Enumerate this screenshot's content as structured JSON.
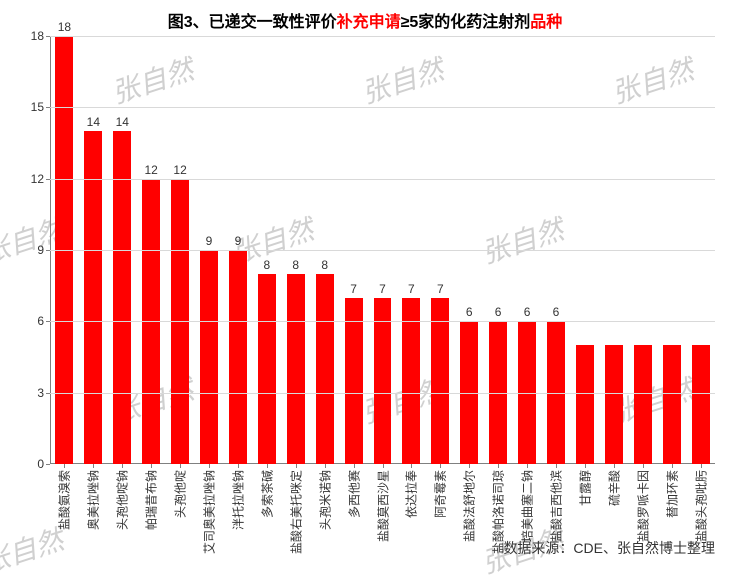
{
  "title": {
    "parts": [
      {
        "text": "图3、已递交一致性评价",
        "color": "#000000"
      },
      {
        "text": "补充申请",
        "color": "#ff0000"
      },
      {
        "text": "≥5家的化药注射剂",
        "color": "#000000"
      },
      {
        "text": "品种",
        "color": "#ff0000"
      }
    ],
    "fontsize": 16
  },
  "source": "数据来源：CDE、张自然博士整理",
  "watermark_text": "张自然",
  "chart": {
    "type": "bar",
    "background_color": "#ffffff",
    "grid_color": "#d9d9d9",
    "axis_color": "#808080",
    "bar_color": "#ff0000",
    "bar_width_ratio": 0.62,
    "ylim": [
      0,
      18
    ],
    "yticks": [
      0,
      3,
      6,
      9,
      12,
      15,
      18
    ],
    "label_fontsize": 12,
    "categories": [
      "盐酸氨溴索",
      "奥美拉唑钠",
      "头孢他啶钠",
      "帕瑞昔布钠",
      "头孢他啶",
      "艾司奥美拉唑钠",
      "泮托拉唑钠",
      "多索茶碱",
      "盐酸右美托咪定",
      "头孢米诺钠",
      "多西他赛",
      "盐酸莫西沙星",
      "依达拉奉",
      "阿奇霉素",
      "盐酸法舒地尔",
      "盐酸帕洛诺司琼",
      "培美曲塞二钠",
      "盐酸吉西他滨",
      "甘露醇",
      "硫辛酸",
      "盐酸罗哌卡因",
      "替加环素",
      "盐酸头孢吡肟"
    ],
    "values": [
      18,
      14,
      14,
      12,
      12,
      9,
      9,
      8,
      8,
      8,
      7,
      7,
      7,
      7,
      6,
      6,
      6,
      6,
      5,
      5,
      5,
      5,
      5
    ],
    "labeled_count": 18
  }
}
